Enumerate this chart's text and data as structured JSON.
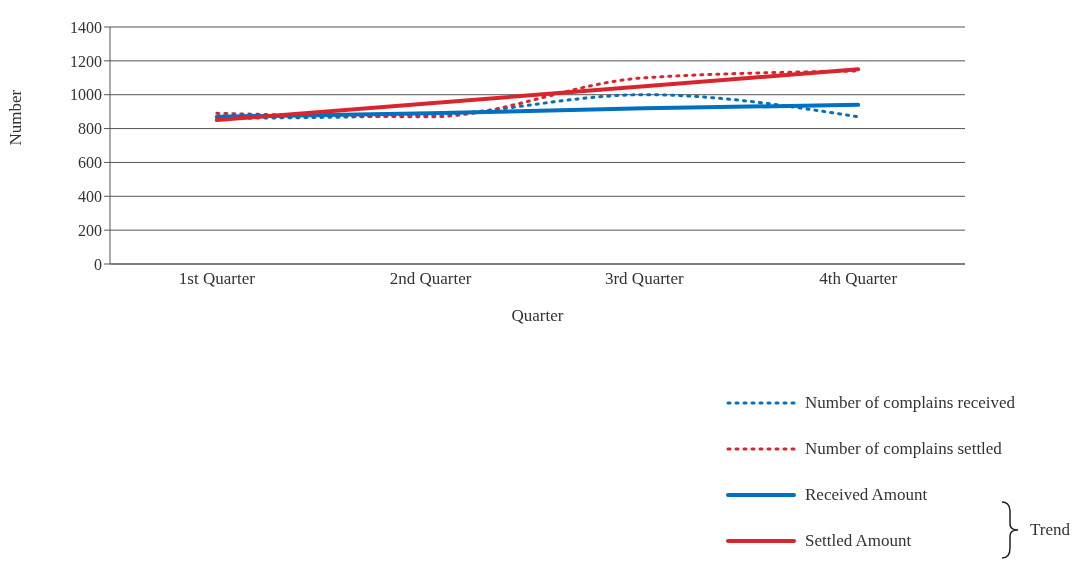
{
  "chart_data": {
    "type": "line",
    "xlabel": "Quarter",
    "ylabel": "Number",
    "categories": [
      "1st Quarter",
      "2nd Quarter",
      "3rd Quarter",
      "4th Quarter"
    ],
    "ylim": [
      0,
      1400
    ],
    "yticks": [
      0,
      200,
      400,
      600,
      800,
      1000,
      1200,
      1400
    ],
    "grid": "y",
    "legend": "bottom right",
    "marker": "none",
    "series": [
      {
        "name": "Number of complains received",
        "color": "#0070c0",
        "line_style": "dotted",
        "values": [
          860,
          880,
          1000,
          870
        ]
      },
      {
        "name": "Number of complains settled",
        "color": "#d9262e",
        "line_style": "dotted",
        "values": [
          890,
          870,
          1100,
          1140
        ]
      },
      {
        "name": "Received Amount",
        "color": "#0070c0",
        "line_style": "solid",
        "values": [
          870,
          890,
          920,
          940
        ]
      },
      {
        "name": "Settled Amount",
        "color": "#d9262e",
        "line_style": "solid",
        "values": [
          850,
          950,
          1050,
          1150
        ]
      }
    ],
    "annotations": [
      "Trend"
    ]
  }
}
